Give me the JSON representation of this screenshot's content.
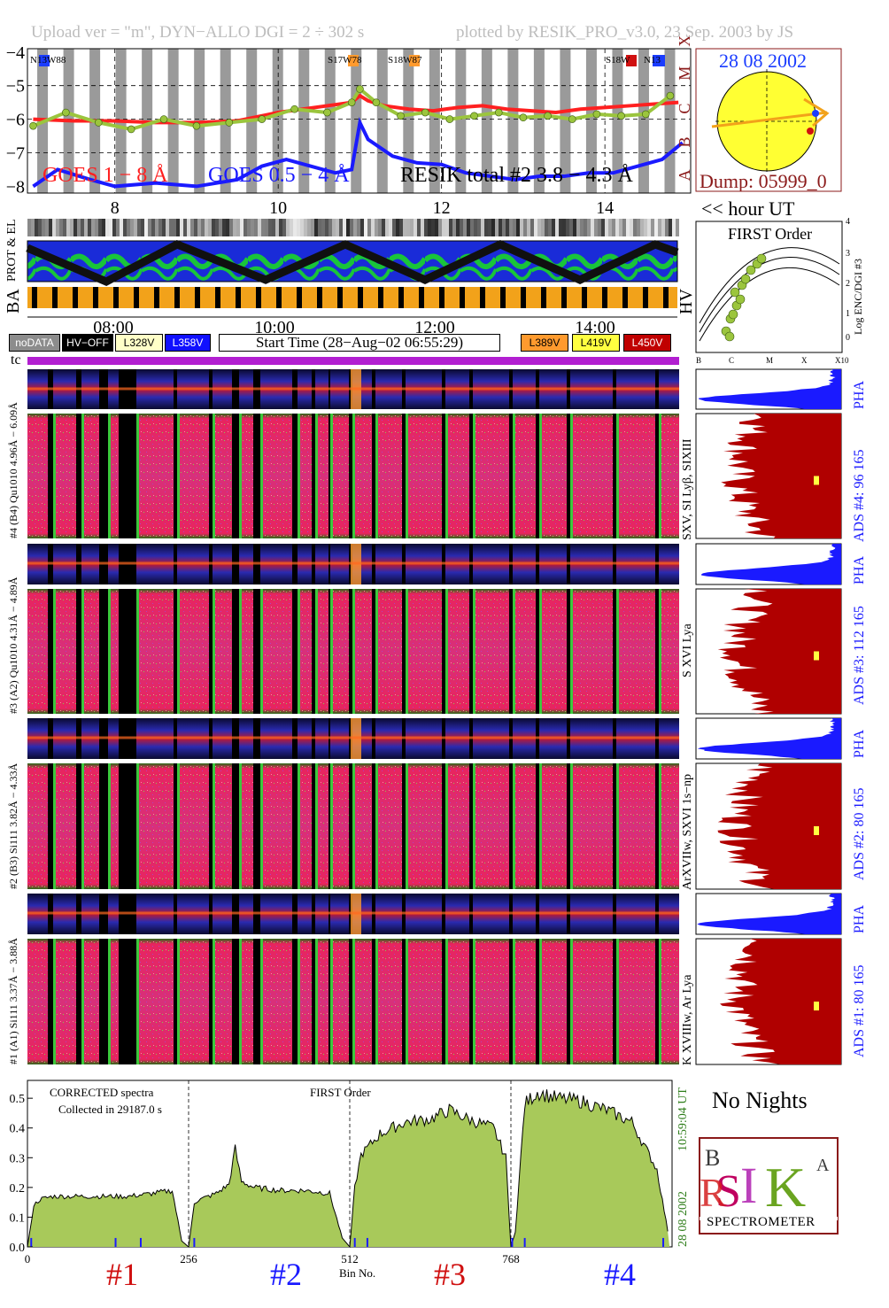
{
  "header": {
    "left": "Upload ver = \"m\", DYN−ALLO DGI =   2 ÷ 302 s",
    "right": "plotted by RESIK_PRO_v3.0, 23 Sep. 2003 by JS"
  },
  "lightcurve": {
    "goes_long_label": "GOES 1 − 8 Å",
    "goes_short_label": "GOES 0.5 − 4 Å",
    "resik_label": "RESIK total #2  3.8 − 4.3 Å",
    "y_ticks": [
      "−4",
      "−5",
      "−6",
      "−7",
      "−8"
    ],
    "x_ticks": [
      "8",
      "10",
      "12",
      "14"
    ],
    "x_unit": "<< hour UT",
    "class_ticks": [
      "X",
      "M",
      "C",
      "B",
      "A"
    ],
    "region_tags": [
      "N13W88",
      "S17W78",
      "S18W87",
      "S18W",
      "N13"
    ]
  },
  "sun_panel": {
    "date": "28 08 2002",
    "dump": "Dump: 05999_0"
  },
  "orbit": {
    "row_labels": [
      "PROT & EL",
      "BA"
    ],
    "hv_label": "HV",
    "time_ticks": [
      "08:00",
      "10:00",
      "12:00",
      "14:00"
    ]
  },
  "first_order": {
    "title": "FIRST Order",
    "ylabel": "Log ENC/DGI #3",
    "y_ticks": [
      "0",
      "1",
      "2",
      "3",
      "4"
    ],
    "x_ticks": [
      "B",
      "C",
      "M",
      "X",
      "X10"
    ]
  },
  "legend": {
    "items": [
      "noDATA",
      "HV−OFF",
      "L328V",
      "L358V"
    ],
    "start_time": "Start Time (28−Aug−02 06:55:29)",
    "items_right": [
      "L389V",
      "L419V",
      "L450V"
    ],
    "colors": {
      "noDATA": "#8c8c8c",
      "HV-OFF": "#000000",
      "L328V": "#ffffc8",
      "L358V": "#1010ff",
      "L389V": "#ff9a2e",
      "L419V": "#ffff40",
      "L450V": "#c00000"
    }
  },
  "tc_label": "tc",
  "channels": [
    {
      "pha_label": "#4 (B4) Qu1010 4.96Å − 6.09Å",
      "lines": "SXV, SI Lyβ, SIXIII",
      "ads": "ADS #4:   96 165",
      "pha": "PHA"
    },
    {
      "pha_label": "#3 (A2) Qu1010 4.31Å − 4.89Å",
      "lines": "S XVI Lya",
      "ads": "ADS #3:   112 165",
      "pha": "PHA"
    },
    {
      "pha_label": "#2 (B3) Si111 3.82Å − 4.33Å",
      "lines": "ArXVIIw, SXVI 1s−np",
      "ads": "ADS #2:   80 165",
      "pha": "PHA"
    },
    {
      "pha_label": "#1 (A1) Si111 3.37Å − 3.88Å",
      "lines": "K XVIIIw, Ar Lya",
      "ads": "ADS #1:   80 165",
      "pha": "PHA"
    }
  ],
  "spectrum": {
    "title": "CORRECTED spectra",
    "collected": "Collected in 29187.0 s",
    "order": "FIRST Order",
    "y_ticks": [
      "0.0",
      "0.1",
      "0.2",
      "0.3",
      "0.4",
      "0.5"
    ],
    "x_ticks": [
      "0",
      "256",
      "512",
      "768"
    ],
    "xlabel": "Bin No.",
    "time_stamp": "10:59:04 UT",
    "date_stamp": "28 08 2002",
    "channel_numbers": [
      "#1",
      "#2",
      "#3",
      "#4"
    ]
  },
  "no_nights": "No Nights",
  "logo": {
    "text": "SPECTROMETER",
    "letters": "RESIK"
  },
  "chart_data": [
    {
      "type": "line",
      "title": "",
      "xlabel": "hour UT",
      "ylabel": "",
      "xlim": [
        6.93,
        15.05
      ],
      "ylim": [
        -8.2,
        -3.9
      ],
      "series": [
        {
          "name": "GOES 1 − 8 Å",
          "color": "#ff2020",
          "x": [
            7.0,
            7.5,
            8.0,
            8.5,
            9.0,
            9.5,
            10.0,
            10.3,
            10.6,
            10.9,
            11.0,
            11.1,
            11.3,
            11.6,
            11.9,
            12.2,
            12.5,
            12.8,
            13.1,
            13.4,
            13.7,
            14.0,
            14.3,
            14.6,
            14.9
          ],
          "y": [
            -6.0,
            -6.05,
            -6.05,
            -6.1,
            -6.1,
            -6.05,
            -5.8,
            -5.7,
            -5.6,
            -5.5,
            -5.3,
            -5.45,
            -5.6,
            -5.7,
            -5.75,
            -5.65,
            -5.6,
            -5.7,
            -5.75,
            -5.8,
            -5.7,
            -5.65,
            -5.6,
            -5.55,
            -5.5
          ]
        },
        {
          "name": "GOES 0.5 − 4 Å",
          "color": "#1a1aff",
          "x": [
            7.0,
            7.3,
            7.7,
            8.0,
            8.5,
            9.0,
            9.5,
            9.8,
            10.1,
            10.4,
            10.7,
            10.9,
            11.0,
            11.1,
            11.4,
            11.7,
            12.0,
            12.3,
            12.6,
            12.9,
            13.2,
            13.5,
            13.8,
            14.1,
            14.4,
            14.7,
            14.95
          ],
          "y": [
            -8.0,
            -7.5,
            -7.8,
            -8.0,
            -7.9,
            -8.0,
            -7.8,
            -7.4,
            -7.2,
            -7.4,
            -7.6,
            -7.5,
            -6.1,
            -6.6,
            -7.1,
            -7.3,
            -7.35,
            -7.6,
            -7.7,
            -7.8,
            -7.7,
            -7.7,
            -7.6,
            -7.6,
            -7.4,
            -7.2,
            -6.7
          ]
        },
        {
          "name": "RESIK total #2  3.8 − 4.3 Å",
          "color": "#9bc53d",
          "x": [
            7.0,
            7.4,
            7.8,
            8.2,
            8.6,
            9.0,
            9.4,
            9.8,
            10.2,
            10.6,
            10.9,
            11.0,
            11.2,
            11.5,
            11.8,
            12.1,
            12.4,
            12.7,
            13.0,
            13.3,
            13.6,
            13.9,
            14.2,
            14.5,
            14.8
          ],
          "y": [
            -6.2,
            -5.8,
            -6.1,
            -6.3,
            -6.0,
            -6.2,
            -6.1,
            -6.0,
            -5.7,
            -5.8,
            -5.5,
            -5.1,
            -5.5,
            -5.9,
            -5.8,
            -6.0,
            -5.9,
            -5.8,
            -5.95,
            -5.9,
            -6.0,
            -5.85,
            -5.9,
            -5.85,
            -5.3
          ]
        }
      ]
    },
    {
      "type": "area",
      "title": "",
      "xlabel": "Bin No.",
      "ylabel": "",
      "xlim": [
        0,
        1024
      ],
      "ylim": [
        0,
        0.56
      ],
      "series": [
        {
          "name": "",
          "x": [
            0,
            10,
            20,
            40,
            80,
            120,
            160,
            200,
            230,
            245,
            256,
            265,
            275,
            300,
            320,
            330,
            340,
            360,
            400,
            440,
            480,
            500,
            512,
            520,
            530,
            560,
            600,
            640,
            670,
            700,
            740,
            760,
            768,
            775,
            790,
            810,
            840,
            880,
            920,
            960,
            1000,
            1020
          ],
          "y": [
            0.0,
            0.14,
            0.16,
            0.17,
            0.17,
            0.17,
            0.17,
            0.18,
            0.19,
            0.02,
            0.0,
            0.15,
            0.16,
            0.18,
            0.21,
            0.33,
            0.22,
            0.2,
            0.19,
            0.19,
            0.18,
            0.03,
            0.0,
            0.2,
            0.31,
            0.38,
            0.42,
            0.43,
            0.46,
            0.43,
            0.4,
            0.3,
            0.0,
            0.05,
            0.48,
            0.52,
            0.5,
            0.49,
            0.46,
            0.42,
            0.26,
            0.02
          ]
        }
      ]
    }
  ]
}
